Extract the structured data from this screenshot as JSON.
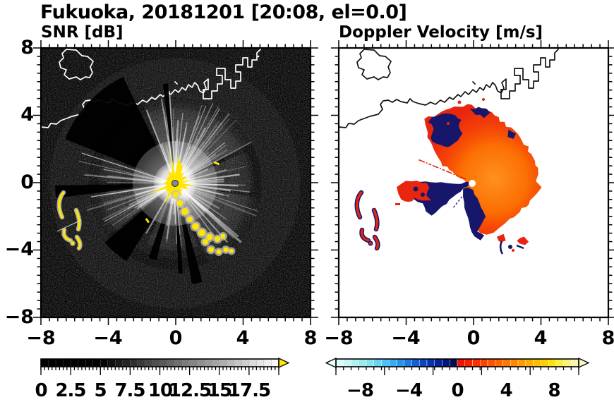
{
  "title": "Fukuoka, 20181201 [20:08, el=0.0]",
  "panels": [
    {
      "label": "SNR [dB]",
      "xticks": [
        "−8",
        "−4",
        "0",
        "4",
        "8"
      ],
      "yticks": [
        "8",
        "4",
        "0",
        "−4",
        "−8"
      ]
    },
    {
      "label": "Doppler Velocity [m/s]",
      "xticks": [
        "−8",
        "−4",
        "0",
        "4",
        "8"
      ],
      "yticks": []
    }
  ],
  "colorbars": [
    {
      "name": "snr",
      "min": 0,
      "max": 20,
      "major_tick_step": 2.5,
      "tick_labels": [
        "0",
        "2.5",
        "5",
        "7.5",
        "10",
        "12.5",
        "15",
        "17.5"
      ],
      "overflow_arrow": "#ffe600",
      "cells": [
        "#000000",
        "#000000",
        "#000000",
        "#000000",
        "#000000",
        "#000000",
        "#000000",
        "#000000",
        "#050505",
        "#101010",
        "#1b1b1b",
        "#252525",
        "#303030",
        "#3a3a3a",
        "#454545",
        "#505050",
        "#5a5a5a",
        "#656565",
        "#707070",
        "#7a7a7a",
        "#858585",
        "#8f8f8f",
        "#9a9a9a",
        "#a5a5a5",
        "#afafaf",
        "#bababa",
        "#c5c5c5",
        "#cfcfcf",
        "#dadada",
        "#e4e4e4",
        "#efefef",
        "#fafafa"
      ]
    },
    {
      "name": "velocity",
      "min": -10,
      "max": 10,
      "major_tick_step": 4,
      "tick_labels": [
        "−8",
        "−4",
        "0",
        "4",
        "8"
      ],
      "underflow_arrow": "#eafeff",
      "overflow_arrow": "#f8f8c8",
      "cells": [
        "#dcfcfc",
        "#c6f7f7",
        "#b0f1f1",
        "#9aebeb",
        "#82e2ee",
        "#68d4f2",
        "#4ec2f6",
        "#38acf2",
        "#2893ea",
        "#1c79e0",
        "#125ed4",
        "#0a46c4",
        "#0532b0",
        "#022296",
        "#011678",
        "#020c56",
        "#ee1400",
        "#f71e00",
        "#ff2e00",
        "#ff4000",
        "#ff5200",
        "#ff6400",
        "#ff7600",
        "#ff8800",
        "#ff9a00",
        "#ffac00",
        "#ffbe00",
        "#ffd000",
        "#ffe20a",
        "#fcee3c",
        "#f9f478",
        "#f7f7ae"
      ]
    }
  ],
  "chart_data": {
    "type": "heatmap",
    "title": "Fukuoka, 20181201 [20:08, el=0.0]",
    "site": "Fukuoka",
    "date": "20181201",
    "time": "20:08",
    "elevation_deg": 0.0,
    "panels": [
      {
        "name": "SNR",
        "units": "dB",
        "xlim": [
          -8,
          8
        ],
        "ylim": [
          -8,
          8
        ],
        "xticks": [
          -8,
          -4,
          0,
          4,
          8
        ],
        "yticks": [
          8,
          4,
          0,
          -4,
          -8
        ],
        "minor_tick_step": 0.5,
        "radar_center_xy": [
          0,
          0
        ],
        "colorbar": {
          "range": [
            0,
            20
          ],
          "ticks": [
            0,
            2.5,
            5,
            7.5,
            10,
            12.5,
            15,
            17.5
          ],
          "colormap": "black-to-white grayscale",
          "overflow": "yellow"
        },
        "description": "PPI radar image: black noisy background, white coastline along the north, bright white beam starburst centered at the radar (0,0) with a saturated yellow core and dark shadow sectors to the W/SSE, a gray beam fan toward the SW, yellow ground-clutter arcs near (-6.8,-0.8)..(-5.6,-3.8) and a yellow clutter chain from (0,-0.7) to (3.4,-4.1)."
      },
      {
        "name": "Doppler Velocity",
        "units": "m/s",
        "xlim": [
          -8,
          8
        ],
        "ylim": [
          -8,
          8
        ],
        "xticks": [
          -8,
          -4,
          0,
          4,
          8
        ],
        "yticks": [
          8,
          4,
          0,
          -4,
          -8
        ],
        "minor_tick_step": 0.5,
        "radar_center_xy": [
          0,
          0
        ],
        "colorbar": {
          "range": [
            -10,
            10
          ],
          "ticks": [
            -8,
            -4,
            0,
            4,
            8
          ],
          "colormap": "pale cyan to navy (negative) | red to pale yellow (positive)"
        },
        "description": "Red/orange outbound velocities fanning N-NE and E-SE of the radar at (0,0); dark navy inbound wedge pointing WSW with a red patch at its far end; navy fringes on the NW edge and south of center; thin red ray toward WNW; red+navy clutter arcs at lower left; red/navy spots near (1.8,-3.5); white dot at the radar site; black coastline."
      }
    ]
  }
}
